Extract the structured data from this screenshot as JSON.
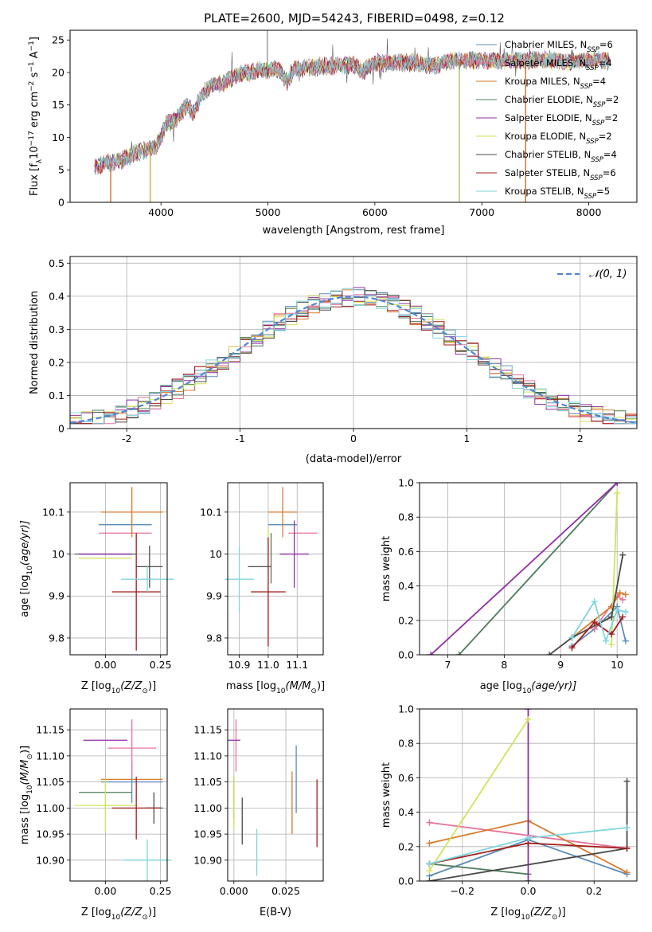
{
  "figure": {
    "title": "PLATE=2600, MJD=54243, FIBERID=0498, z=0.12"
  },
  "models": [
    {
      "label": "Chabrier MILES, N",
      "n": "6",
      "color": "#5b8db8"
    },
    {
      "label": "Salpeter MILES, N",
      "n": "4",
      "color": "#e8749a"
    },
    {
      "label": "Kroupa MILES, N",
      "n": "4",
      "color": "#d77a2d"
    },
    {
      "label": "Chabrier ELODIE, N",
      "n": "2",
      "color": "#4d7c5b"
    },
    {
      "label": "Salpeter ELODIE, N",
      "n": "2",
      "color": "#8f2ca6"
    },
    {
      "label": "Kroupa ELODIE, N",
      "n": "2",
      "color": "#cfe35a"
    },
    {
      "label": "Chabrier STELIB, N",
      "n": "4",
      "color": "#4a4a4a"
    },
    {
      "label": "Salpeter STELIB, N",
      "n": "6",
      "color": "#a51c1c"
    },
    {
      "label": "Kroupa STELIB, N",
      "n": "5",
      "color": "#7fd6dc"
    }
  ],
  "legend_sub": "SSP",
  "hist_legend": "𝒩(0, 1)",
  "chart_data": [
    {
      "id": "spectrum",
      "type": "line",
      "xlabel": "wavelength [Angstrom, rest frame]",
      "ylabel": "Flux [f",
      "ylabel_parts": [
        "Flux [f",
        "λ",
        "10",
        "−17",
        " erg cm",
        "−2",
        " s",
        "−1",
        " A",
        "−1",
        "]"
      ],
      "xlim": [
        3150,
        8450
      ],
      "ylim": [
        0,
        26.5
      ],
      "xticks": [
        4000,
        5000,
        6000,
        7000,
        8000
      ],
      "yticks": [
        0,
        5,
        10,
        15,
        20,
        25
      ],
      "continuum": [
        [
          3380,
          5.5
        ],
        [
          3450,
          5.8
        ],
        [
          3550,
          6.2
        ],
        [
          3650,
          6.6
        ],
        [
          3750,
          7.5
        ],
        [
          3850,
          8
        ],
        [
          3950,
          8.5
        ],
        [
          4050,
          12
        ],
        [
          4150,
          13
        ],
        [
          4250,
          15
        ],
        [
          4300,
          13.8
        ],
        [
          4400,
          17
        ],
        [
          4500,
          18
        ],
        [
          4600,
          18.5
        ],
        [
          4700,
          19.5
        ],
        [
          4800,
          20
        ],
        [
          4900,
          20.2
        ],
        [
          5000,
          20.5
        ],
        [
          5100,
          20.5
        ],
        [
          5180,
          18.5
        ],
        [
          5250,
          20.5
        ],
        [
          5400,
          20.8
        ],
        [
          5600,
          21
        ],
        [
          5800,
          21.2
        ],
        [
          5890,
          20.2
        ],
        [
          6000,
          21.5
        ],
        [
          6200,
          21.5
        ],
        [
          6400,
          21.5
        ],
        [
          6563,
          21
        ],
        [
          6700,
          21.8
        ],
        [
          6900,
          21.8
        ],
        [
          7000,
          22
        ],
        [
          7200,
          21.8
        ],
        [
          7400,
          21.8
        ],
        [
          7600,
          22
        ],
        [
          7800,
          21.6
        ],
        [
          8000,
          22
        ],
        [
          8200,
          21.8
        ]
      ],
      "spikes": [
        [
          3530,
          0
        ],
        [
          3900,
          0
        ],
        [
          6790,
          0
        ],
        [
          7410,
          0
        ]
      ]
    },
    {
      "id": "residuals",
      "type": "histogram",
      "xlabel": "(data-model)/error",
      "ylabel": "Normed distribution",
      "xlim": [
        -2.5,
        2.5
      ],
      "ylim": [
        0,
        0.52
      ],
      "xticks": [
        -2,
        -1,
        0,
        1,
        2
      ],
      "yticks": [
        0,
        0.1,
        0.2,
        0.3,
        0.4,
        0.5
      ],
      "bin_width": 0.1
    },
    {
      "id": "age_vs_Z",
      "type": "scatter",
      "xlabel": "Z [log",
      "xlabel_parts": [
        "Z [log",
        "10",
        "(Z/Z",
        "⊙",
        ")]"
      ],
      "ylabel": "age  [log",
      "ylabel_parts": [
        "age  [log",
        "10",
        "(age/yr)]"
      ],
      "xlim": [
        -0.16,
        0.28
      ],
      "ylim": [
        9.76,
        10.17
      ],
      "xticks": [
        0.0,
        0.25
      ],
      "xticklabels": [
        "0.00",
        "0.25"
      ],
      "yticks": [
        9.8,
        9.9,
        10.0,
        10.1
      ],
      "points": [
        {
          "m": 0,
          "x": 0.09,
          "y": 10.07,
          "ex": 0.12,
          "ey": 0.0
        },
        {
          "m": 1,
          "x": 0.09,
          "y": 10.05,
          "ex": 0.12,
          "ey": 0.0
        },
        {
          "m": 2,
          "x": 0.12,
          "y": 10.1,
          "ex": 0.14,
          "ey": 0.06
        },
        {
          "m": 3,
          "x": 0.0,
          "y": 10.0,
          "ex": 0.14,
          "ey": 0.0
        },
        {
          "m": 4,
          "x": 0.0,
          "y": 10.0,
          "ex": 0.12,
          "ey": 0.0
        },
        {
          "m": 5,
          "x": 0.0,
          "y": 9.99,
          "ex": 0.12,
          "ey": 0.0
        },
        {
          "m": 6,
          "x": 0.2,
          "y": 9.97,
          "ex": 0.06,
          "ey": 0.05
        },
        {
          "m": 7,
          "x": 0.14,
          "y": 9.91,
          "ex": 0.11,
          "ey": 0.14
        },
        {
          "m": 8,
          "x": 0.19,
          "y": 9.94,
          "ex": 0.12,
          "ey": 0.03
        }
      ]
    },
    {
      "id": "age_vs_mass",
      "type": "scatter",
      "xlabel": "mass [log",
      "xlabel_parts": [
        "mass [log",
        "10",
        "(M/M",
        "⊙",
        ")]"
      ],
      "ylabel": "",
      "xlim": [
        10.86,
        11.19
      ],
      "ylim": [
        9.76,
        10.17
      ],
      "xticks": [
        10.9,
        11.0,
        11.1
      ],
      "xticklabels": [
        "10.9",
        "11.0",
        "11.1"
      ],
      "yticks": [
        9.8,
        9.9,
        10.0,
        10.1
      ],
      "points": [
        {
          "m": 0,
          "x": 11.05,
          "y": 10.07,
          "ex": 0.05,
          "ey": 0.0
        },
        {
          "m": 1,
          "x": 11.12,
          "y": 10.05,
          "ex": 0.05,
          "ey": 0.0
        },
        {
          "m": 2,
          "x": 11.05,
          "y": 10.1,
          "ex": 0.05,
          "ey": 0.06
        },
        {
          "m": 3,
          "x": 11.01,
          "y": 9.99,
          "ex": 0.0,
          "ey": 0.06
        },
        {
          "m": 4,
          "x": 11.09,
          "y": 10.0,
          "ex": 0.05,
          "ey": 0.08
        },
        {
          "m": 5,
          "x": 11.0,
          "y": 10.01,
          "ex": 0.0,
          "ey": 0.05
        },
        {
          "m": 6,
          "x": 10.97,
          "y": 9.97,
          "ex": 0.04,
          "ey": 0.0
        },
        {
          "m": 7,
          "x": 11.0,
          "y": 9.91,
          "ex": 0.06,
          "ey": 0.13
        },
        {
          "m": 8,
          "x": 10.9,
          "y": 9.94,
          "ex": 0.05,
          "ey": 0.08
        }
      ]
    },
    {
      "id": "massweight_vs_age",
      "type": "line",
      "xlabel": "age  [log",
      "xlabel_parts": [
        "age  [log",
        "10",
        "(age/yr)]"
      ],
      "ylabel": "mass weight",
      "xlim": [
        6.5,
        10.35
      ],
      "ylim": [
        0,
        1
      ],
      "xticks": [
        7,
        8,
        9,
        10
      ],
      "yticks": [
        0,
        0.2,
        0.4,
        0.6,
        0.8,
        1.0
      ],
      "yticklabels": [
        "0.0",
        "0.2",
        "0.4",
        "0.6",
        "0.8",
        "1.0"
      ],
      "series": [
        {
          "m": 0,
          "x": [
            9.2,
            9.6,
            10.0,
            10.15
          ],
          "y": [
            0.05,
            0.15,
            0.28,
            0.08
          ]
        },
        {
          "m": 1,
          "x": [
            9.6,
            10.0,
            10.1
          ],
          "y": [
            0.15,
            0.34,
            0.32
          ]
        },
        {
          "m": 2,
          "x": [
            9.2,
            9.9,
            10.05,
            10.15
          ],
          "y": [
            0.1,
            0.28,
            0.36,
            0.35
          ]
        },
        {
          "m": 3,
          "x": [
            7.2,
            10.0
          ],
          "y": [
            0.0,
            1.0
          ]
        },
        {
          "m": 4,
          "x": [
            6.7,
            10.0
          ],
          "y": [
            0.0,
            1.0
          ]
        },
        {
          "m": 5,
          "x": [
            9.9,
            10.0
          ],
          "y": [
            0.06,
            0.94
          ]
        },
        {
          "m": 6,
          "x": [
            8.8,
            9.2,
            9.9,
            10.1
          ],
          "y": [
            0.0,
            0.1,
            0.22,
            0.58
          ]
        },
        {
          "m": 7,
          "x": [
            9.2,
            9.6,
            9.9,
            10.1
          ],
          "y": [
            0.04,
            0.19,
            0.12,
            0.22
          ]
        },
        {
          "m": 8,
          "x": [
            9.2,
            9.6,
            9.8,
            10.0,
            10.15
          ],
          "y": [
            0.1,
            0.31,
            0.08,
            0.26,
            0.25
          ]
        }
      ]
    },
    {
      "id": "mass_vs_Z",
      "type": "scatter",
      "xlabel": "Z [log",
      "xlabel_parts": [
        "Z [log",
        "10",
        "(Z/Z",
        "⊙",
        ")]"
      ],
      "ylabel": "mass [log",
      "ylabel_parts": [
        "mass [log",
        "10",
        "(M/M",
        "⊙",
        ")]"
      ],
      "xlim": [
        -0.16,
        0.28
      ],
      "ylim": [
        10.86,
        11.19
      ],
      "xticks": [
        0.0,
        0.25
      ],
      "xticklabels": [
        "0.00",
        "0.25"
      ],
      "yticks": [
        10.9,
        10.95,
        11.0,
        11.05,
        11.1,
        11.15
      ],
      "yticklabels": [
        "10.90",
        "10.95",
        "11.00",
        "11.05",
        "11.10",
        "11.15"
      ],
      "points": [
        {
          "m": 0,
          "x": 0.12,
          "y": 11.05,
          "ex": 0.14,
          "ey": 0.04
        },
        {
          "m": 1,
          "x": 0.12,
          "y": 11.115,
          "ex": 0.11,
          "ey": 0.055
        },
        {
          "m": 2,
          "x": 0.12,
          "y": 11.055,
          "ex": 0.14,
          "ey": 0.0
        },
        {
          "m": 3,
          "x": 0.0,
          "y": 11.03,
          "ex": 0.12,
          "ey": 0.0
        },
        {
          "m": 4,
          "x": 0.0,
          "y": 11.13,
          "ex": 0.1,
          "ey": 0.0
        },
        {
          "m": 5,
          "x": 0.0,
          "y": 11.005,
          "ex": 0.14,
          "ey": 0.05
        },
        {
          "m": 6,
          "x": 0.22,
          "y": 11.0,
          "ex": 0.04,
          "ey": 0.03
        },
        {
          "m": 7,
          "x": 0.14,
          "y": 11.0,
          "ex": 0.11,
          "ey": 0.06
        },
        {
          "m": 8,
          "x": 0.19,
          "y": 10.9,
          "ex": 0.11,
          "ey": 0.04
        }
      ]
    },
    {
      "id": "mass_vs_EBV",
      "type": "scatter",
      "xlabel": "E(B-V)",
      "ylabel": "",
      "xlim": [
        -0.003,
        0.043
      ],
      "ylim": [
        10.86,
        11.19
      ],
      "xticks": [
        0.0,
        0.025
      ],
      "xticklabels": [
        "0.000",
        "0.025"
      ],
      "yticks": [
        10.9,
        10.95,
        11.0,
        11.05,
        11.1,
        11.15
      ],
      "yticklabels": [
        "10.90",
        "10.95",
        "11.00",
        "11.05",
        "11.10",
        "11.15"
      ],
      "points": [
        {
          "m": 0,
          "x": 0.03,
          "y": 11.055,
          "ex": 0,
          "ey": 0.065
        },
        {
          "m": 1,
          "x": 0.001,
          "y": 11.12,
          "ex": 0,
          "ey": 0.05
        },
        {
          "m": 2,
          "x": 0.028,
          "y": 11.01,
          "ex": 0,
          "ey": 0.06
        },
        {
          "m": 3,
          "x": 0.0,
          "y": 11.02,
          "ex": 0,
          "ey": 0.04
        },
        {
          "m": 4,
          "x": 0.0,
          "y": 11.13,
          "ex": 0,
          "ey": 0.0
        },
        {
          "m": 5,
          "x": 0.0,
          "y": 11.01,
          "ex": 0,
          "ey": 0.05
        },
        {
          "m": 6,
          "x": 0.004,
          "y": 10.975,
          "ex": 0,
          "ey": 0.045
        },
        {
          "m": 7,
          "x": 0.04,
          "y": 10.99,
          "ex": 0,
          "ey": 0.065
        },
        {
          "m": 8,
          "x": 0.011,
          "y": 10.915,
          "ex": 0,
          "ey": 0.045
        }
      ]
    },
    {
      "id": "massweight_vs_Z",
      "type": "line",
      "xlabel": "Z [log",
      "xlabel_parts": [
        "Z [log",
        "10",
        "(Z/Z",
        "⊙",
        ")]"
      ],
      "ylabel": "mass weight",
      "xlim": [
        -0.33,
        0.33
      ],
      "ylim": [
        0,
        1
      ],
      "xticks": [
        -0.2,
        0.0,
        0.2
      ],
      "xticklabels": [
        "−0.2",
        "0.0",
        "0.2"
      ],
      "yticks": [
        0,
        0.2,
        0.4,
        0.6,
        0.8,
        1.0
      ],
      "yticklabels": [
        "0.0",
        "0.2",
        "0.4",
        "0.6",
        "0.8",
        "1.0"
      ],
      "series": [
        {
          "m": 0,
          "x": [
            -0.3,
            0.0,
            0.3
          ],
          "y": [
            0.03,
            0.24,
            0.04
          ]
        },
        {
          "m": 1,
          "x": [
            -0.3,
            0.3
          ],
          "y": [
            0.34,
            0.19
          ]
        },
        {
          "m": 2,
          "x": [
            -0.3,
            0.0,
            0.3
          ],
          "y": [
            0.22,
            0.35,
            0.05
          ]
        },
        {
          "m": 3,
          "x": [
            -0.3,
            0.0
          ],
          "y": [
            0.1,
            0.04
          ]
        },
        {
          "m": 4,
          "x": [
            0.0,
            0.0
          ],
          "y": [
            0.0,
            1.0
          ]
        },
        {
          "m": 5,
          "x": [
            -0.3,
            0.0
          ],
          "y": [
            0.06,
            0.94
          ]
        },
        {
          "m": 6,
          "x": [
            -0.3,
            0.3,
            0.3
          ],
          "y": [
            0.0,
            0.19,
            0.58
          ]
        },
        {
          "m": 7,
          "x": [
            -0.3,
            0.0,
            0.3
          ],
          "y": [
            0.1,
            0.22,
            0.19
          ]
        },
        {
          "m": 8,
          "x": [
            -0.3,
            0.0,
            0.3
          ],
          "y": [
            0.1,
            0.25,
            0.31
          ]
        }
      ]
    }
  ]
}
